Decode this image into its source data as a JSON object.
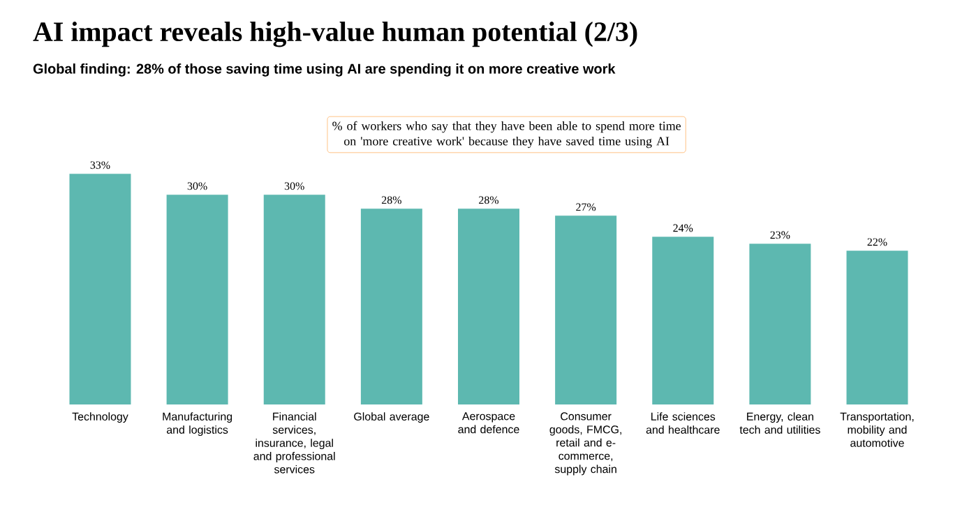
{
  "chart_data": {
    "type": "bar",
    "title": "AI impact reveals high-value human potential (2/3)",
    "subtitle": "Global finding: 28% of those saving time using AI are spending it on more creative work",
    "annotations": [
      "% of workers who say that they have been able to spend more time on 'more creative work' because they have saved time using AI"
    ],
    "categories": [
      "Technology",
      "Manufacturing and logistics",
      "Financial services, insurance, legal and professional services",
      "Global average",
      "Aerospace and defence",
      "Consumer goods, FMCG, retail and e-commerce, supply chain",
      "Life sciences and healthcare",
      "Energy, clean tech and utilities",
      "Transportation, mobility and automotive"
    ],
    "values": [
      33,
      30,
      30,
      28,
      28,
      27,
      24,
      23,
      22
    ],
    "value_labels": [
      "33%",
      "30%",
      "30%",
      "28%",
      "28%",
      "27%",
      "24%",
      "23%",
      "22%"
    ],
    "color": "#5db8b0"
  }
}
